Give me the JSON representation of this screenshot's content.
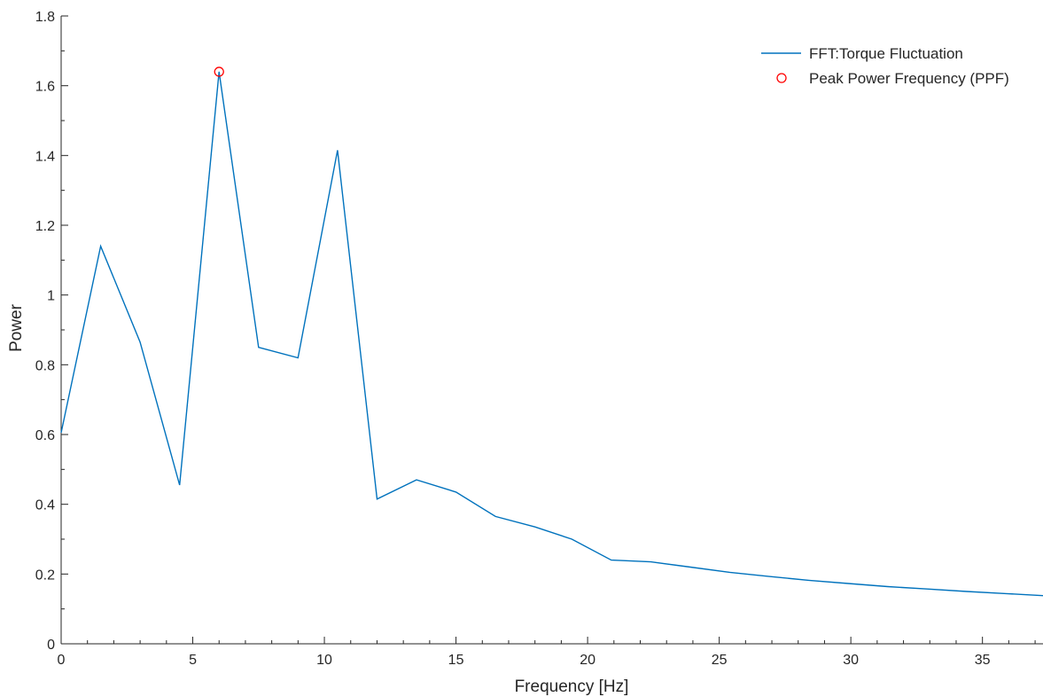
{
  "chart_data": {
    "type": "line",
    "xlabel": "Frequency [Hz]",
    "ylabel": "Power",
    "xlim": [
      0,
      37.3
    ],
    "ylim": [
      0,
      1.8
    ],
    "x_ticks": [
      0,
      5,
      10,
      15,
      20,
      25,
      30,
      35
    ],
    "x_tick_labels": [
      "0",
      "5",
      "10",
      "15",
      "20",
      "25",
      "30",
      "35"
    ],
    "y_ticks": [
      0,
      0.2,
      0.4,
      0.6,
      0.8,
      1,
      1.2,
      1.4,
      1.6,
      1.8
    ],
    "y_tick_labels": [
      "0",
      "0.2",
      "0.4",
      "0.6",
      "0.8",
      "1",
      "1.2",
      "1.4",
      "1.6",
      "1.8"
    ],
    "grid": false,
    "legend_position": "top-right",
    "series": [
      {
        "name": "FFT:Torque Fluctuation",
        "color": "#0072bd",
        "x": [
          0,
          1.5,
          3.0,
          4.5,
          6.0,
          7.5,
          9.0,
          10.5,
          12.0,
          13.5,
          15.0,
          16.5,
          18.0,
          19.4,
          20.9,
          22.4,
          23.9,
          25.4,
          26.9,
          28.4,
          29.9,
          31.4,
          32.9,
          34.4,
          35.9,
          37.3
        ],
        "y": [
          0.605,
          1.14,
          0.865,
          0.455,
          1.64,
          0.85,
          0.82,
          1.415,
          0.415,
          0.47,
          0.435,
          0.365,
          0.335,
          0.3,
          0.24,
          0.235,
          0.22,
          0.205,
          0.193,
          0.182,
          0.173,
          0.164,
          0.157,
          0.15,
          0.144,
          0.138
        ]
      },
      {
        "name": "Peak Power Frequency (PPF)",
        "color": "#ff0000",
        "marker": "circle",
        "x": [
          6.0
        ],
        "y": [
          1.64
        ]
      }
    ]
  }
}
